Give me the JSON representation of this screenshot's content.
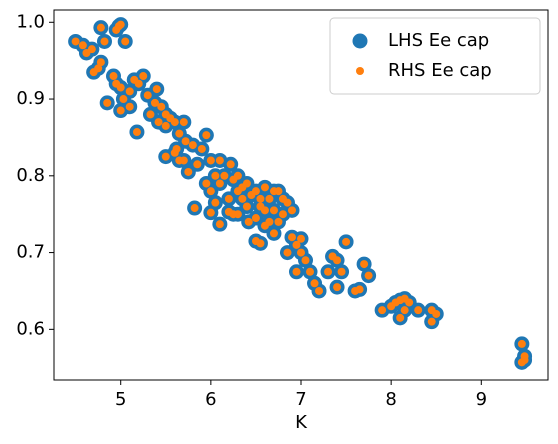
{
  "chart_data": {
    "type": "scatter",
    "xlabel": "K",
    "x": [
      4.5,
      4.58,
      4.62,
      4.68,
      4.7,
      4.75,
      4.78,
      4.82,
      4.78,
      4.85,
      4.95,
      4.98,
      5.0,
      5.05,
      4.92,
      4.95,
      5.0,
      5.0,
      5.03,
      5.1,
      5.15,
      5.2,
      5.25,
      5.18,
      5.1,
      5.3,
      5.33,
      5.38,
      5.42,
      5.45,
      5.4,
      5.5,
      5.55,
      5.5,
      5.6,
      5.65,
      5.7,
      5.72,
      5.62,
      5.65,
      5.5,
      5.6,
      5.7,
      5.75,
      5.8,
      5.85,
      5.9,
      5.95,
      6.0,
      5.95,
      6.0,
      6.05,
      6.1,
      6.05,
      6.0,
      6.1,
      6.15,
      6.2,
      6.22,
      6.25,
      6.3,
      6.35,
      6.3,
      6.4,
      6.2,
      6.25,
      6.3,
      6.35,
      6.4,
      6.45,
      6.5,
      6.55,
      6.6,
      6.42,
      6.5,
      6.55,
      6.6,
      6.65,
      6.7,
      6.75,
      6.8,
      6.7,
      6.65,
      6.8,
      6.85,
      6.9,
      6.5,
      6.55,
      6.7,
      6.75,
      6.85,
      6.9,
      6.95,
      7.0,
      6.95,
      7.05,
      7.0,
      7.1,
      7.15,
      7.2,
      7.3,
      7.35,
      7.4,
      7.45,
      7.5,
      7.4,
      7.6,
      7.65,
      7.7,
      7.75,
      7.9,
      8.0,
      8.05,
      8.1,
      8.15,
      8.2,
      8.1,
      8.15,
      8.3,
      8.45,
      8.5,
      8.45,
      5.82,
      6.1,
      6.6,
      9.45,
      9.48,
      9.48,
      9.45
    ],
    "series": [
      {
        "name": "LHS Ee cap",
        "color": "#1f77b4",
        "size": 7.5,
        "values": [
          0.975,
          0.97,
          0.96,
          0.965,
          0.935,
          0.94,
          0.993,
          0.975,
          0.948,
          0.895,
          0.99,
          0.995,
          0.997,
          0.975,
          0.93,
          0.92,
          0.915,
          0.885,
          0.9,
          0.91,
          0.925,
          0.92,
          0.93,
          0.857,
          0.89,
          0.905,
          0.88,
          0.895,
          0.87,
          0.89,
          0.913,
          0.88,
          0.875,
          0.865,
          0.87,
          0.855,
          0.87,
          0.845,
          0.835,
          0.82,
          0.825,
          0.83,
          0.82,
          0.805,
          0.84,
          0.815,
          0.835,
          0.853,
          0.82,
          0.79,
          0.78,
          0.8,
          0.82,
          0.765,
          0.752,
          0.79,
          0.8,
          0.77,
          0.815,
          0.795,
          0.8,
          0.785,
          0.78,
          0.79,
          0.753,
          0.75,
          0.75,
          0.77,
          0.76,
          0.775,
          0.78,
          0.77,
          0.785,
          0.74,
          0.745,
          0.76,
          0.755,
          0.77,
          0.78,
          0.78,
          0.77,
          0.755,
          0.74,
          0.75,
          0.765,
          0.755,
          0.715,
          0.712,
          0.725,
          0.74,
          0.7,
          0.72,
          0.71,
          0.718,
          0.675,
          0.69,
          0.7,
          0.675,
          0.66,
          0.65,
          0.675,
          0.695,
          0.69,
          0.675,
          0.714,
          0.655,
          0.65,
          0.652,
          0.685,
          0.67,
          0.625,
          0.63,
          0.635,
          0.638,
          0.64,
          0.635,
          0.615,
          0.625,
          0.625,
          0.61,
          0.62,
          0.625,
          0.758,
          0.737,
          0.735,
          0.581,
          0.565,
          0.56,
          0.557
        ]
      },
      {
        "name": "RHS Ee cap",
        "color": "#ff7f0e",
        "size": 4,
        "values": [
          0.975,
          0.97,
          0.96,
          0.965,
          0.935,
          0.94,
          0.993,
          0.975,
          0.948,
          0.895,
          0.99,
          0.995,
          0.997,
          0.975,
          0.93,
          0.92,
          0.915,
          0.885,
          0.9,
          0.91,
          0.925,
          0.92,
          0.93,
          0.857,
          0.89,
          0.905,
          0.88,
          0.895,
          0.87,
          0.89,
          0.913,
          0.88,
          0.875,
          0.865,
          0.87,
          0.855,
          0.87,
          0.845,
          0.835,
          0.82,
          0.825,
          0.83,
          0.82,
          0.805,
          0.84,
          0.815,
          0.835,
          0.853,
          0.82,
          0.79,
          0.78,
          0.8,
          0.82,
          0.765,
          0.752,
          0.79,
          0.8,
          0.77,
          0.815,
          0.795,
          0.8,
          0.785,
          0.78,
          0.79,
          0.753,
          0.75,
          0.75,
          0.77,
          0.76,
          0.775,
          0.78,
          0.77,
          0.785,
          0.74,
          0.745,
          0.76,
          0.755,
          0.77,
          0.78,
          0.78,
          0.77,
          0.755,
          0.74,
          0.75,
          0.765,
          0.755,
          0.715,
          0.712,
          0.725,
          0.74,
          0.7,
          0.72,
          0.71,
          0.718,
          0.675,
          0.69,
          0.7,
          0.675,
          0.66,
          0.65,
          0.675,
          0.695,
          0.69,
          0.675,
          0.714,
          0.655,
          0.65,
          0.652,
          0.685,
          0.67,
          0.625,
          0.63,
          0.635,
          0.638,
          0.64,
          0.635,
          0.615,
          0.625,
          0.625,
          0.61,
          0.62,
          0.625,
          0.758,
          0.737,
          0.735,
          0.581,
          0.565,
          0.56,
          0.557
        ]
      }
    ],
    "xlim": [
      4.26,
      9.74
    ],
    "ylim": [
      0.534,
      1.016
    ],
    "xticks": [
      5,
      6,
      7,
      8,
      9
    ],
    "yticks": [
      0.6,
      0.7,
      0.8,
      0.9,
      {
        "value": 1,
        "label": "1.0"
      }
    ],
    "grid": false,
    "legend": "upper right"
  }
}
